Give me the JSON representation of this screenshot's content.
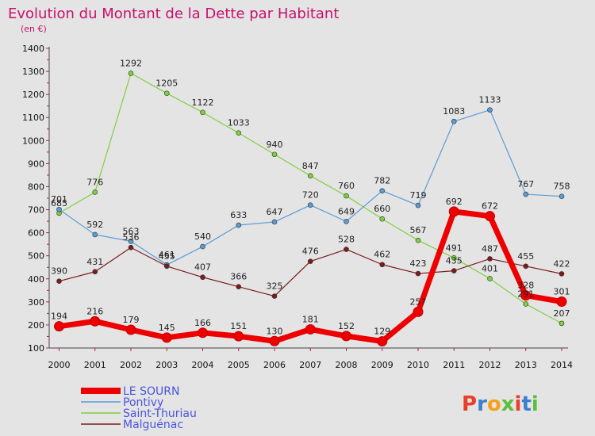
{
  "chart_data": {
    "type": "line",
    "title": "Evolution du Montant de la Dette par Habitant",
    "subtitle": "(en €)",
    "x": [
      2000,
      2001,
      2002,
      2003,
      2004,
      2005,
      2006,
      2007,
      2008,
      2009,
      2010,
      2011,
      2012,
      2013,
      2014
    ],
    "ylim": [
      100,
      1400
    ],
    "yticks": [
      100,
      200,
      300,
      400,
      500,
      600,
      700,
      800,
      900,
      1000,
      1100,
      1200,
      1300,
      1400
    ],
    "grid": false,
    "legend_position": "bottom-left",
    "series": [
      {
        "name": "Saint-Thuriau",
        "color": "#7fcf3f",
        "values": [
          685,
          776,
          1292,
          1205,
          1122,
          1033,
          940,
          847,
          760,
          660,
          567,
          491,
          401,
          291,
          207
        ]
      },
      {
        "name": "Pontivy",
        "color": "#5b9bd5",
        "values": [
          701,
          592,
          563,
          461,
          540,
          633,
          647,
          720,
          649,
          782,
          719,
          1083,
          1133,
          767,
          758
        ]
      },
      {
        "name": "Malguénac",
        "color": "#7b1c1c",
        "values": [
          390,
          431,
          536,
          455,
          407,
          366,
          325,
          476,
          528,
          462,
          423,
          435,
          487,
          455,
          422
        ]
      },
      {
        "name": "LE SOURN",
        "color": "#ee0000",
        "values": [
          194,
          216,
          179,
          145,
          166,
          151,
          130,
          181,
          152,
          129,
          257,
          692,
          672,
          328,
          301
        ]
      }
    ],
    "legend_order": [
      "LE SOURN",
      "Pontivy",
      "Saint-Thuriau",
      "Malguénac"
    ]
  },
  "brand": "Proxiti",
  "brand_colors": [
    "#e8402a",
    "#3a7fd0",
    "#f5a21b",
    "#5bbf3b",
    "#e8402a",
    "#3a7fd0",
    "#5bbf3b"
  ]
}
